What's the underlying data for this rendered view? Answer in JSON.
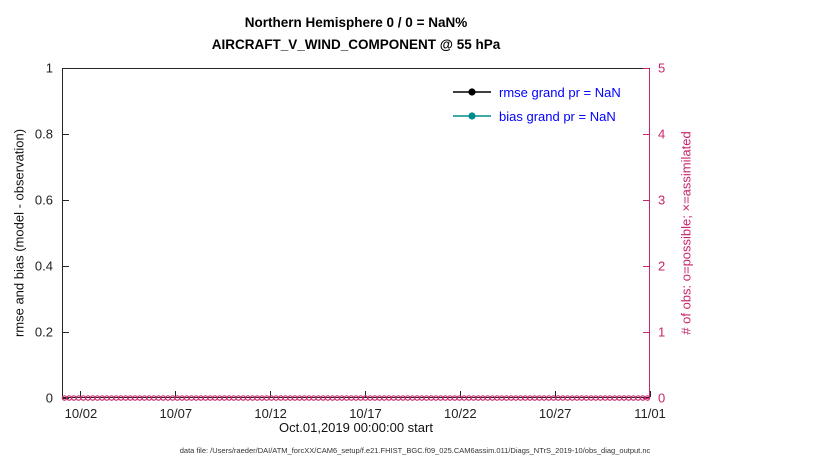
{
  "title": {
    "line1": "Northern Hemisphere 0 / 0 = NaN%",
    "line2": "AIRCRAFT_V_WIND_COMPONENT @ 55 hPa"
  },
  "axes": {
    "left_label": "rmse and bias (model - observation)",
    "left_ticks": [
      "0",
      "0.2",
      "0.4",
      "0.6",
      "0.8",
      "1"
    ],
    "right_label": "# of obs: o=possible; ×=assimilated",
    "right_ticks": [
      "0",
      "1",
      "2",
      "3",
      "4",
      "5"
    ],
    "x_ticks": [
      "10/02",
      "10/07",
      "10/12",
      "10/17",
      "10/22",
      "10/27",
      "11/01"
    ],
    "x_label": "Oct.01,2019 00:00:00 start"
  },
  "legend": [
    {
      "key": "rmse",
      "label": "rmse grand pr = NaN",
      "color": "#000000"
    },
    {
      "key": "bias",
      "label": "bias grand pr = NaN",
      "color": "#008b8b"
    }
  ],
  "footer": "data file: /Users/raeder/DAI/ATM_forcXX/CAM6_setup/f.e21.FHIST_BGC.f09_025.CAM6assim.011/Diags_NTrS_2019-10/obs_diag_output.nc",
  "colors": {
    "obs_axis": "#c9256c",
    "legend_text": "#0000ff",
    "axis": "#262626",
    "rmse": "#000000",
    "bias": "#008b8b"
  },
  "chart_data": {
    "type": "line",
    "title": "Northern Hemisphere 0 / 0 = NaN% — AIRCRAFT_V_WIND_COMPONENT @ 55 hPa",
    "xlabel": "Oct.01,2019 00:00:00 start",
    "x_tick_labels": [
      "10/02",
      "10/07",
      "10/12",
      "10/17",
      "10/22",
      "10/27",
      "11/01"
    ],
    "x_range_days": [
      1,
      31
    ],
    "left_axis": {
      "ylabel": "rmse and bias (model - observation)",
      "ylim": [
        0,
        1
      ],
      "ticks": [
        0,
        0.2,
        0.4,
        0.6,
        0.8,
        1
      ]
    },
    "right_axis": {
      "ylabel": "# of obs: o=possible; ×=assimilated",
      "ylim": [
        0,
        5
      ],
      "ticks": [
        0,
        1,
        2,
        3,
        4,
        5
      ]
    },
    "grid": false,
    "legend_position": "upper-right-inside",
    "series": [
      {
        "name": "rmse grand pr = NaN",
        "axis": "left",
        "color": "#000000",
        "marker": "filled-circle",
        "values": "all NaN (no curve visible)"
      },
      {
        "name": "bias grand pr = NaN",
        "axis": "left",
        "color": "#008b8b",
        "marker": "filled-circle",
        "values": "all NaN (no curve visible)"
      },
      {
        "name": "# of obs possible (o)",
        "axis": "right",
        "color": "#c9256c",
        "marker": "open-circle",
        "values": "0 at every time step along the x-axis"
      },
      {
        "name": "# of obs assimilated (×)",
        "axis": "right",
        "color": "#c9256c",
        "marker": "x",
        "values": "0 at every time step along the x-axis"
      }
    ]
  }
}
